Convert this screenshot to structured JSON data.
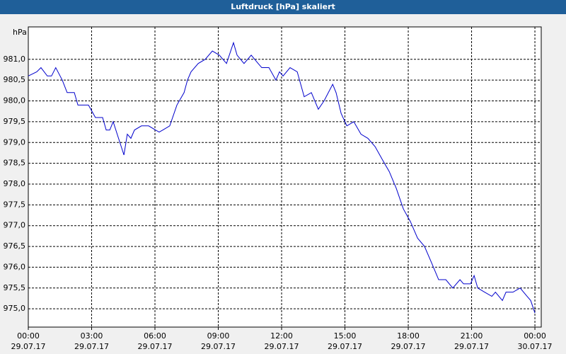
{
  "chart_data": {
    "type": "line",
    "title": "Luftdruck [hPa] skaliert",
    "y_label": "hPa",
    "x": [
      0,
      0.4,
      0.6,
      0.9,
      1.1,
      1.3,
      1.61,
      1.84,
      2.18,
      2.35,
      2.85,
      3.18,
      3.52,
      3.69,
      3.86,
      4.02,
      4.53,
      4.69,
      4.86,
      5.03,
      5.36,
      5.7,
      6.03,
      6.2,
      6.37,
      6.7,
      7.04,
      7.38,
      7.54,
      7.71,
      8.05,
      8.38,
      8.72,
      9.05,
      9.39,
      9.72,
      9.89,
      10.22,
      10.56,
      10.89,
      11.06,
      11.4,
      11.73,
      11.9,
      12.07,
      12.4,
      12.74,
      13.07,
      13.41,
      13.74,
      14.01,
      14.42,
      14.58,
      14.82,
      15.09,
      15.42,
      15.76,
      16.09,
      16.43,
      16.76,
      17.1,
      17.43,
      17.77,
      18.1,
      18.44,
      18.77,
      19.11,
      19.44,
      19.78,
      20.11,
      20.45,
      20.62,
      20.95,
      21.12,
      21.29,
      21.62,
      21.96,
      22.13,
      22.46,
      22.63,
      22.96,
      23.3,
      23.63,
      23.8,
      24
    ],
    "series": [
      {
        "name": "Luftdruck",
        "color": "#0000cc",
        "values": [
          980.6,
          980.7,
          980.8,
          980.6,
          980.6,
          980.8,
          980.5,
          980.2,
          980.2,
          979.9,
          979.9,
          979.6,
          979.6,
          979.3,
          979.3,
          979.5,
          978.7,
          979.2,
          979.1,
          979.3,
          979.4,
          979.4,
          979.3,
          979.25,
          979.3,
          979.4,
          979.9,
          980.2,
          980.5,
          980.7,
          980.9,
          981.0,
          981.2,
          981.1,
          980.9,
          981.4,
          981.1,
          980.9,
          981.1,
          980.9,
          980.8,
          980.8,
          980.5,
          980.7,
          980.6,
          980.8,
          980.7,
          980.1,
          980.2,
          979.8,
          980.0,
          980.4,
          980.2,
          979.7,
          979.4,
          979.5,
          979.2,
          979.1,
          978.9,
          978.6,
          978.3,
          977.9,
          977.4,
          977.1,
          976.7,
          976.5,
          976.1,
          975.7,
          975.7,
          975.5,
          975.7,
          975.6,
          975.6,
          975.8,
          975.5,
          975.4,
          975.3,
          975.4,
          975.2,
          975.4,
          975.4,
          975.5,
          975.3,
          975.2,
          974.9
        ]
      }
    ],
    "xlim": [
      0,
      24.3
    ],
    "ylim": [
      974.56,
      981.78
    ],
    "xticks": [
      {
        "value": 0,
        "label": "00:00",
        "date": "29.07.17"
      },
      {
        "value": 3,
        "label": "03:00",
        "date": "29.07.17"
      },
      {
        "value": 6,
        "label": "06:00",
        "date": "29.07.17"
      },
      {
        "value": 9,
        "label": "09:00",
        "date": "29.07.17"
      },
      {
        "value": 12,
        "label": "12:00",
        "date": "29.07.17"
      },
      {
        "value": 15,
        "label": "15:00",
        "date": "29.07.17"
      },
      {
        "value": 18,
        "label": "18:00",
        "date": "29.07.17"
      },
      {
        "value": 21,
        "label": "21:00",
        "date": "29.07.17"
      },
      {
        "value": 24,
        "label": "00:00",
        "date": "30.07.17"
      }
    ],
    "yticks": [
      {
        "value": 975,
        "label": "975,0"
      },
      {
        "value": 975.5,
        "label": "975,5"
      },
      {
        "value": 976,
        "label": "976,0"
      },
      {
        "value": 976.5,
        "label": "976,5"
      },
      {
        "value": 977,
        "label": "977,0"
      },
      {
        "value": 977.5,
        "label": "977,5"
      },
      {
        "value": 978,
        "label": "978,0"
      },
      {
        "value": 978.5,
        "label": "978,5"
      },
      {
        "value": 979,
        "label": "979,0"
      },
      {
        "value": 979.5,
        "label": "979,5"
      },
      {
        "value": 980,
        "label": "980,0"
      },
      {
        "value": 980.5,
        "label": "980,5"
      },
      {
        "value": 981,
        "label": "981,0"
      }
    ],
    "grid": true
  }
}
